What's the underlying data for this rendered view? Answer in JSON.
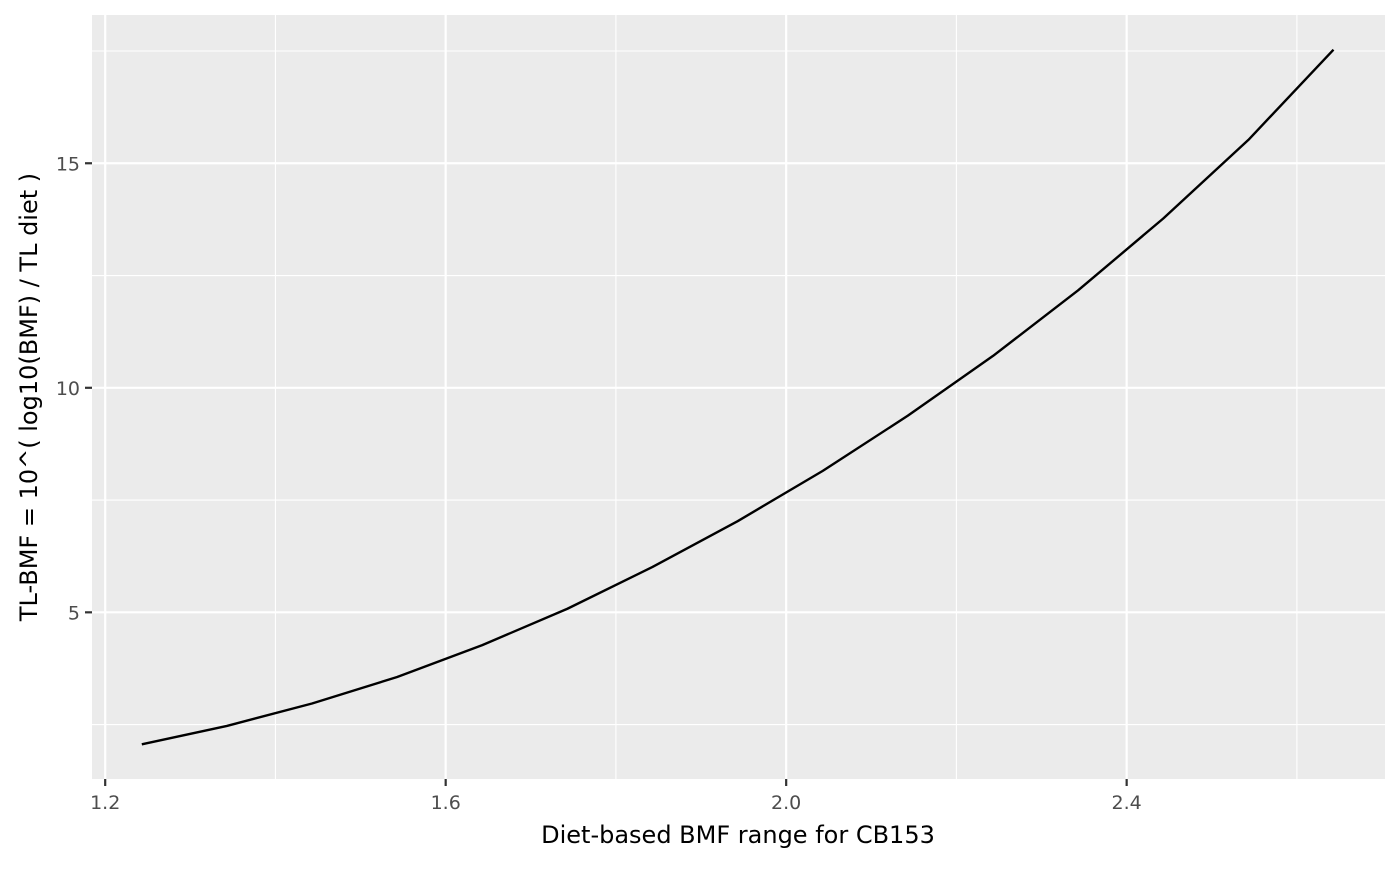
{
  "chart_data": {
    "type": "line",
    "title": "",
    "xlabel": "Diet-based BMF range for CB153",
    "ylabel": "TL-BMF = 10^( log10(BMF) / TL diet )",
    "xlim": [
      1.1845,
      2.7035
    ],
    "ylim": [
      1.2885,
      18.3015
    ],
    "x_ticks": [
      1.2,
      1.6,
      2.0,
      2.4
    ],
    "x_tick_labels": [
      "1.2",
      "1.6",
      "2.0",
      "2.4"
    ],
    "y_ticks": [
      5,
      10,
      15
    ],
    "y_tick_labels": [
      "5",
      "10",
      "15"
    ],
    "grid": true,
    "legend": "none",
    "colors": {
      "panel_background": "#ebebeb",
      "grid": "#ffffff",
      "line": "#000000",
      "tick_label": "#4d4d4d"
    },
    "series": [
      {
        "x": [
          1.243,
          1.343,
          1.443,
          1.543,
          1.643,
          1.743,
          1.843,
          1.943,
          2.043,
          2.143,
          2.243,
          2.343,
          2.443,
          2.543,
          2.643
        ],
        "y": [
          2.06,
          2.47,
          2.97,
          3.56,
          4.27,
          5.08,
          6.01,
          7.03,
          8.15,
          9.38,
          10.71,
          12.17,
          13.77,
          15.52,
          17.53
        ]
      }
    ]
  }
}
